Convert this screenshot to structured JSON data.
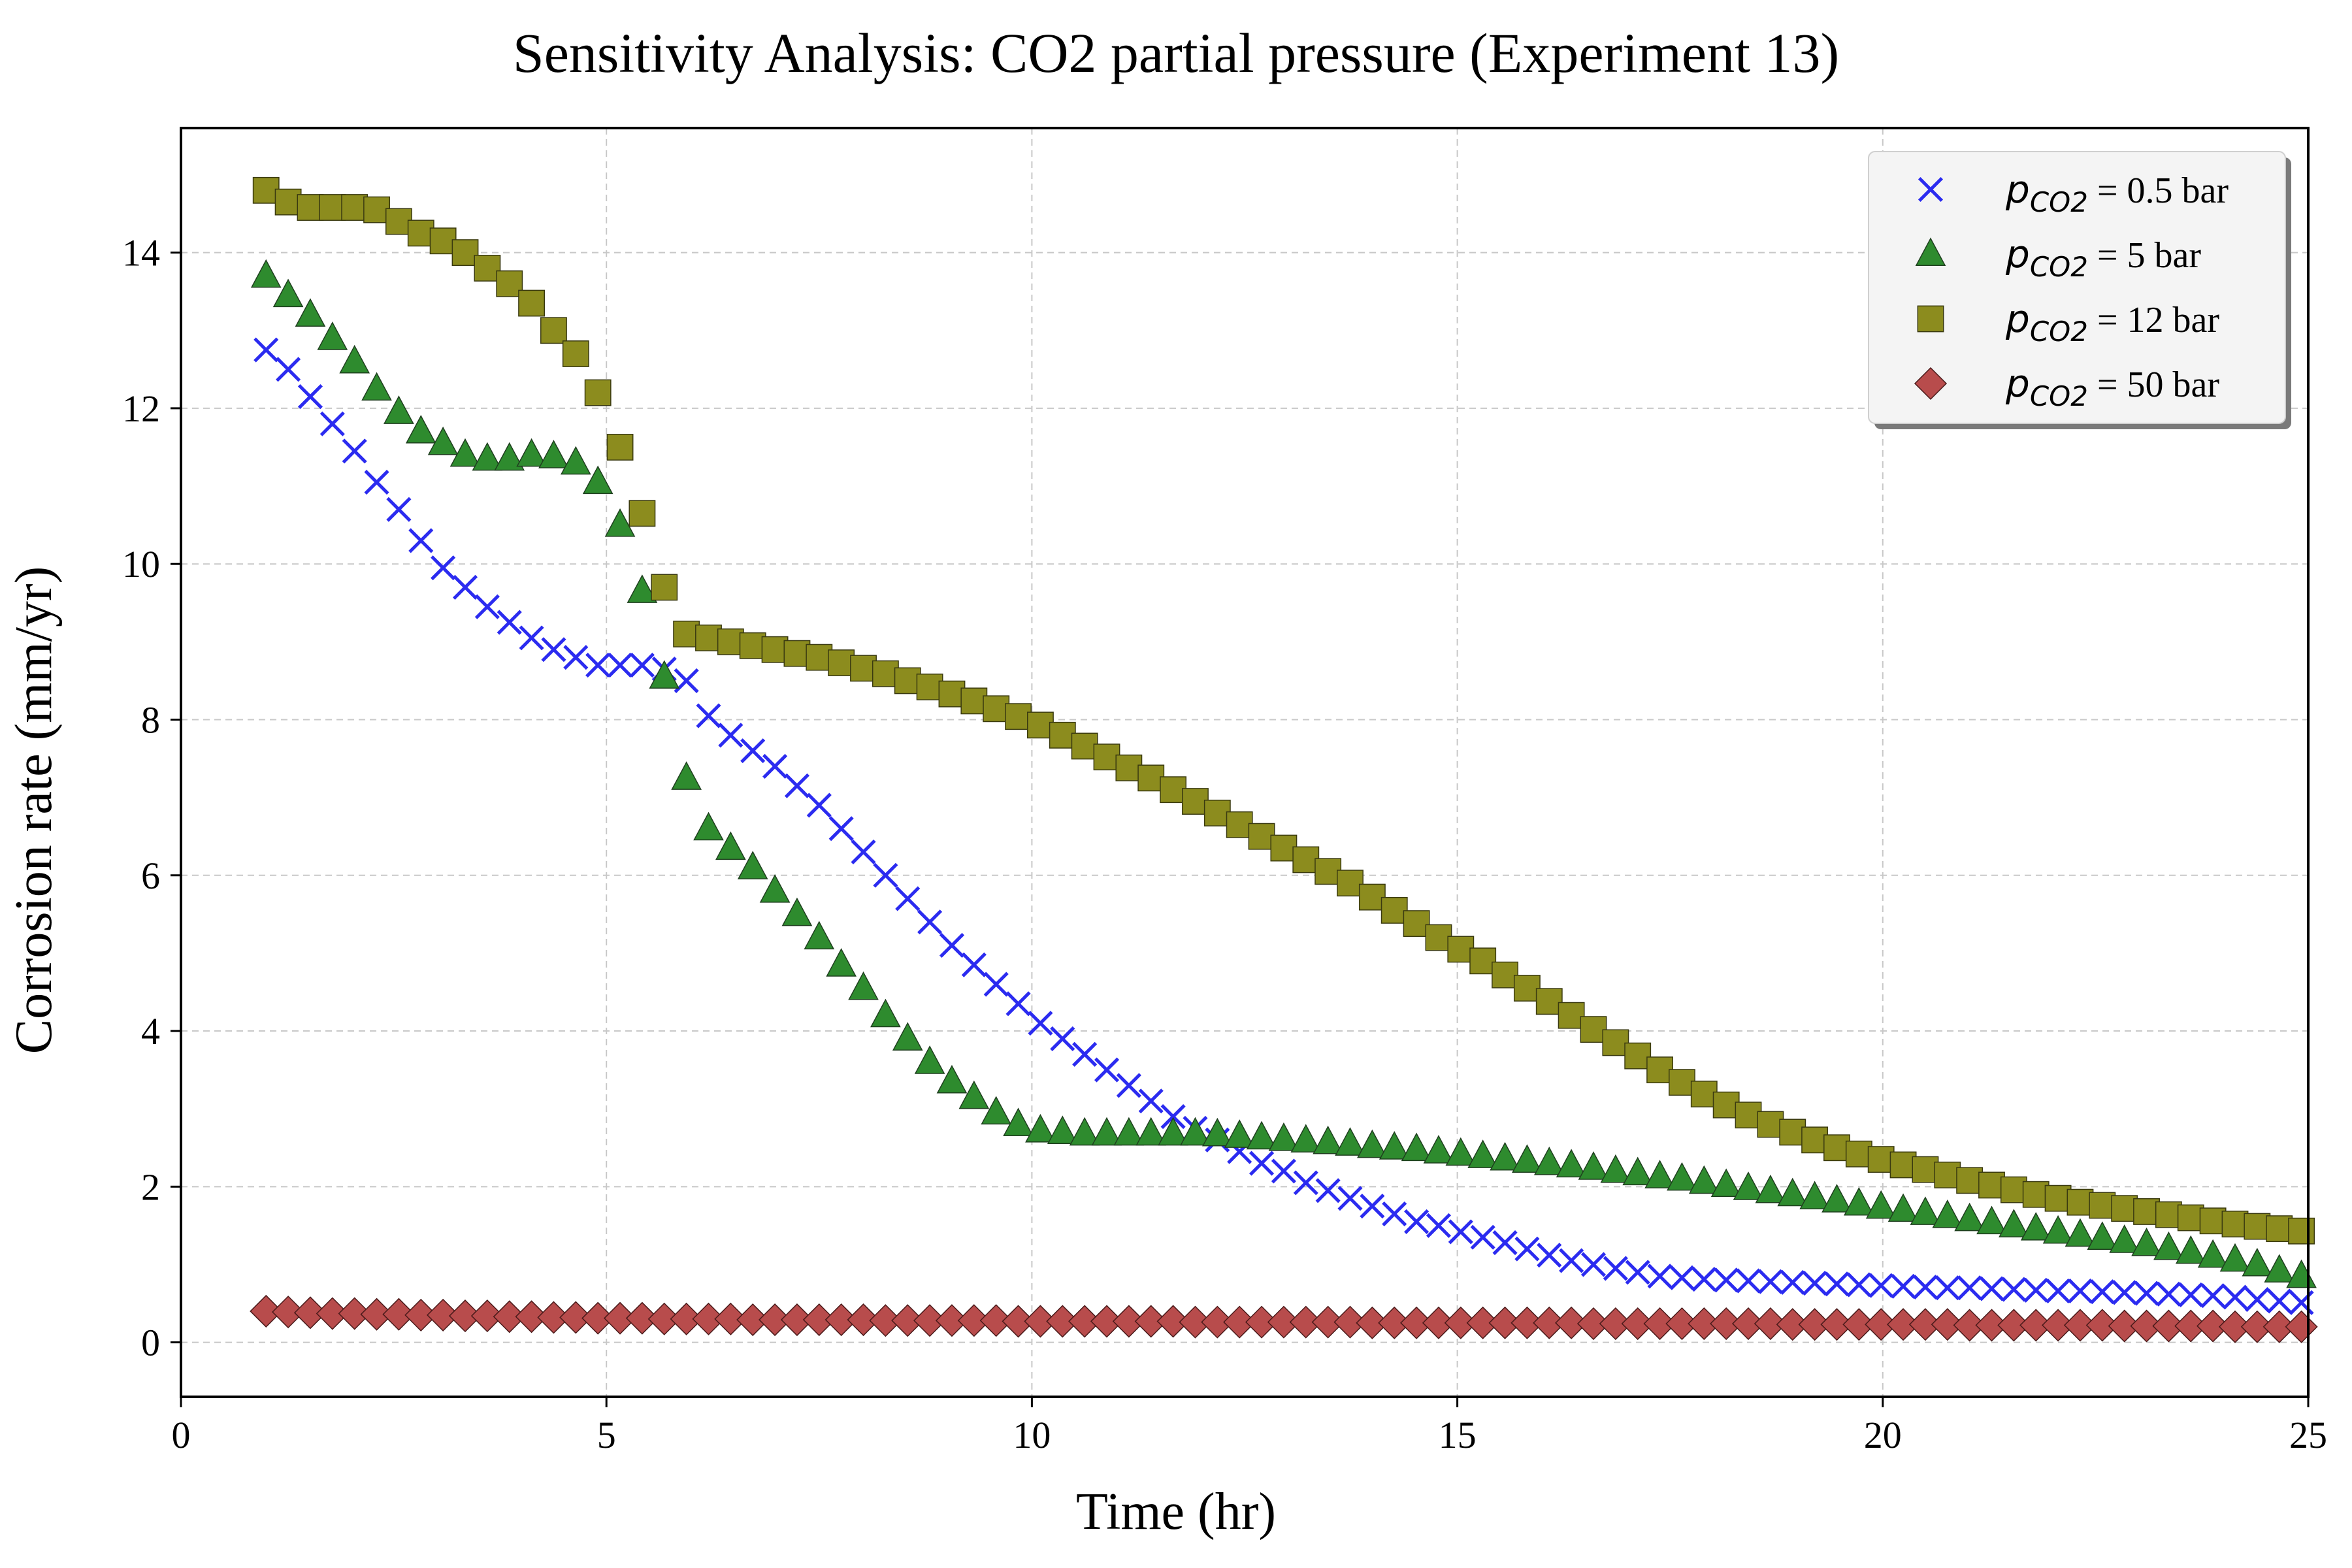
{
  "chart_data": {
    "type": "scatter",
    "title": "Sensitivity Analysis: CO2 partial pressure (Experiment 13)",
    "xlabel": "Time (hr)",
    "ylabel": "Corrosion rate (mm/yr)",
    "xlim": [
      0,
      25
    ],
    "ylim": [
      -0.7,
      15.6
    ],
    "xticks": [
      0,
      5,
      10,
      15,
      20,
      25
    ],
    "yticks": [
      0,
      2,
      4,
      6,
      8,
      10,
      12,
      14
    ],
    "grid": true,
    "legend_position": "top-right",
    "x": [
      1.0,
      1.26,
      1.52,
      1.78,
      2.04,
      2.3,
      2.56,
      2.82,
      3.08,
      3.34,
      3.6,
      3.86,
      4.12,
      4.38,
      4.64,
      4.9,
      5.16,
      5.42,
      5.68,
      5.94,
      6.2,
      6.46,
      6.72,
      6.98,
      7.24,
      7.5,
      7.76,
      8.02,
      8.28,
      8.54,
      8.8,
      9.06,
      9.32,
      9.58,
      9.84,
      10.1,
      10.36,
      10.62,
      10.88,
      11.14,
      11.4,
      11.66,
      11.92,
      12.18,
      12.44,
      12.7,
      12.96,
      13.22,
      13.48,
      13.74,
      14.0,
      14.26,
      14.52,
      14.78,
      15.04,
      15.3,
      15.56,
      15.82,
      16.08,
      16.34,
      16.6,
      16.86,
      17.12,
      17.38,
      17.64,
      17.9,
      18.16,
      18.42,
      18.68,
      18.94,
      19.2,
      19.46,
      19.72,
      19.98,
      20.24,
      20.5,
      20.76,
      21.02,
      21.28,
      21.54,
      21.8,
      22.06,
      22.32,
      22.58,
      22.84,
      23.1,
      23.36,
      23.62,
      23.88,
      24.14,
      24.4,
      24.66,
      24.92
    ],
    "series": [
      {
        "name": "p_CO2 = 0.5 bar",
        "legend_label": {
          "symbol": "p",
          "subscript": "CO2",
          "suffix": " = 0.5 bar"
        },
        "marker": "x",
        "color": "#2b2bf0",
        "values": [
          12.75,
          12.5,
          12.15,
          11.8,
          11.45,
          11.05,
          10.7,
          10.3,
          9.95,
          9.7,
          9.45,
          9.25,
          9.05,
          8.9,
          8.8,
          8.7,
          8.7,
          8.7,
          8.65,
          8.5,
          8.05,
          7.8,
          7.6,
          7.4,
          7.15,
          6.9,
          6.6,
          6.3,
          6.0,
          5.7,
          5.4,
          5.1,
          4.85,
          4.6,
          4.35,
          4.1,
          3.9,
          3.7,
          3.5,
          3.3,
          3.1,
          2.9,
          2.75,
          2.6,
          2.45,
          2.3,
          2.2,
          2.05,
          1.95,
          1.85,
          1.75,
          1.65,
          1.55,
          1.5,
          1.42,
          1.35,
          1.28,
          1.2,
          1.12,
          1.05,
          1.0,
          0.95,
          0.9,
          0.85,
          0.83,
          0.81,
          0.8,
          0.79,
          0.78,
          0.77,
          0.76,
          0.75,
          0.74,
          0.73,
          0.72,
          0.71,
          0.7,
          0.7,
          0.69,
          0.68,
          0.67,
          0.66,
          0.66,
          0.65,
          0.64,
          0.63,
          0.62,
          0.61,
          0.6,
          0.58,
          0.55,
          0.53,
          0.51
        ]
      },
      {
        "name": "p_CO2 = 5 bar",
        "legend_label": {
          "symbol": "p",
          "subscript": "CO2",
          "suffix": " = 5 bar"
        },
        "marker": "triangle",
        "color": "#2e8b2e",
        "values": [
          13.7,
          13.45,
          13.2,
          12.9,
          12.6,
          12.25,
          11.95,
          11.7,
          11.55,
          11.4,
          11.35,
          11.35,
          11.4,
          11.38,
          11.3,
          11.05,
          10.5,
          9.65,
          8.55,
          7.25,
          6.6,
          6.35,
          6.1,
          5.8,
          5.5,
          5.2,
          4.85,
          4.55,
          4.2,
          3.9,
          3.6,
          3.35,
          3.15,
          2.95,
          2.8,
          2.72,
          2.7,
          2.68,
          2.68,
          2.68,
          2.68,
          2.68,
          2.68,
          2.67,
          2.65,
          2.63,
          2.61,
          2.59,
          2.57,
          2.55,
          2.52,
          2.5,
          2.48,
          2.45,
          2.42,
          2.39,
          2.36,
          2.33,
          2.3,
          2.27,
          2.24,
          2.2,
          2.17,
          2.13,
          2.1,
          2.06,
          2.02,
          1.98,
          1.94,
          1.9,
          1.86,
          1.82,
          1.78,
          1.74,
          1.7,
          1.66,
          1.62,
          1.58,
          1.54,
          1.5,
          1.46,
          1.42,
          1.38,
          1.34,
          1.3,
          1.26,
          1.21,
          1.16,
          1.11,
          1.06,
          1.0,
          0.92,
          0.85
        ]
      },
      {
        "name": "p_CO2 = 12 bar",
        "legend_label": {
          "symbol": "p",
          "subscript": "CO2",
          "suffix": " = 12 bar"
        },
        "marker": "square",
        "color": "#8c8c1e",
        "values": [
          14.8,
          14.65,
          14.58,
          14.58,
          14.58,
          14.55,
          14.4,
          14.25,
          14.15,
          14.0,
          13.8,
          13.6,
          13.35,
          13.0,
          12.7,
          12.2,
          11.5,
          10.65,
          9.7,
          9.1,
          9.05,
          9.0,
          8.95,
          8.9,
          8.85,
          8.8,
          8.73,
          8.66,
          8.59,
          8.5,
          8.42,
          8.33,
          8.24,
          8.14,
          8.04,
          7.93,
          7.8,
          7.66,
          7.52,
          7.38,
          7.25,
          7.1,
          6.95,
          6.8,
          6.65,
          6.5,
          6.35,
          6.2,
          6.05,
          5.9,
          5.72,
          5.55,
          5.38,
          5.2,
          5.05,
          4.9,
          4.72,
          4.55,
          4.38,
          4.2,
          4.02,
          3.85,
          3.68,
          3.5,
          3.34,
          3.19,
          3.05,
          2.92,
          2.8,
          2.7,
          2.6,
          2.5,
          2.42,
          2.35,
          2.28,
          2.22,
          2.15,
          2.08,
          2.02,
          1.96,
          1.9,
          1.85,
          1.8,
          1.76,
          1.72,
          1.68,
          1.64,
          1.6,
          1.56,
          1.52,
          1.49,
          1.46,
          1.43
        ]
      },
      {
        "name": "p_CO2 = 50 bar",
        "legend_label": {
          "symbol": "p",
          "subscript": "CO2",
          "suffix": " = 50 bar"
        },
        "marker": "diamond",
        "color": "#b84c4c",
        "values": [
          0.4,
          0.39,
          0.38,
          0.37,
          0.37,
          0.36,
          0.36,
          0.35,
          0.35,
          0.34,
          0.34,
          0.33,
          0.33,
          0.32,
          0.32,
          0.31,
          0.31,
          0.31,
          0.3,
          0.3,
          0.3,
          0.3,
          0.29,
          0.29,
          0.29,
          0.29,
          0.29,
          0.29,
          0.28,
          0.28,
          0.28,
          0.28,
          0.28,
          0.28,
          0.27,
          0.27,
          0.27,
          0.27,
          0.27,
          0.27,
          0.27,
          0.27,
          0.26,
          0.26,
          0.26,
          0.26,
          0.26,
          0.26,
          0.26,
          0.26,
          0.25,
          0.25,
          0.25,
          0.25,
          0.25,
          0.25,
          0.25,
          0.25,
          0.25,
          0.25,
          0.24,
          0.24,
          0.24,
          0.24,
          0.24,
          0.24,
          0.24,
          0.24,
          0.24,
          0.23,
          0.23,
          0.23,
          0.23,
          0.23,
          0.23,
          0.23,
          0.23,
          0.22,
          0.22,
          0.22,
          0.22,
          0.22,
          0.22,
          0.22,
          0.21,
          0.21,
          0.21,
          0.21,
          0.21,
          0.2,
          0.2,
          0.2,
          0.2
        ]
      }
    ]
  }
}
